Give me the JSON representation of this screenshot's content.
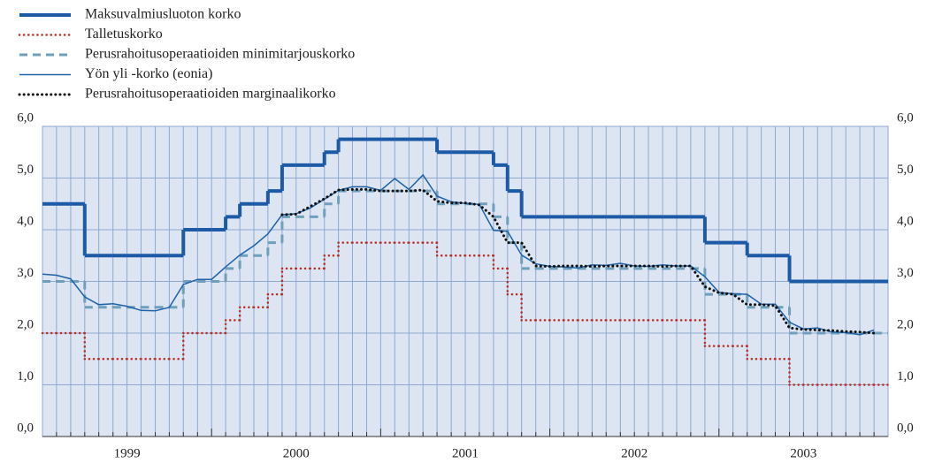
{
  "chart_data": {
    "type": "line",
    "xlim": [
      1999,
      2004
    ],
    "xticks": [
      {
        "value": 1999.5,
        "label": "1999"
      },
      {
        "value": 2000.5,
        "label": "2000"
      },
      {
        "value": 2001.5,
        "label": "2001"
      },
      {
        "value": 2002.5,
        "label": "2002"
      },
      {
        "value": 2003.5,
        "label": "2003"
      }
    ],
    "ylim": [
      0,
      6
    ],
    "yticks": [
      {
        "value": 0,
        "label": "0,0"
      },
      {
        "value": 1,
        "label": "1,0"
      },
      {
        "value": 2,
        "label": "2,0"
      },
      {
        "value": 3,
        "label": "3,0"
      },
      {
        "value": 4,
        "label": "4,0"
      },
      {
        "value": 5,
        "label": "5,0"
      },
      {
        "value": 6,
        "label": "6,0"
      }
    ],
    "grid": true,
    "legend": "top-left",
    "x": [
      1999.0,
      1999.083,
      1999.167,
      1999.25,
      1999.333,
      1999.417,
      1999.5,
      1999.583,
      1999.667,
      1999.75,
      1999.833,
      1999.917,
      2000.0,
      2000.083,
      2000.167,
      2000.25,
      2000.333,
      2000.417,
      2000.5,
      2000.583,
      2000.667,
      2000.75,
      2000.833,
      2000.917,
      2001.0,
      2001.083,
      2001.167,
      2001.25,
      2001.333,
      2001.417,
      2001.5,
      2001.583,
      2001.667,
      2001.75,
      2001.833,
      2001.917,
      2002.0,
      2002.083,
      2002.167,
      2002.25,
      2002.333,
      2002.417,
      2002.5,
      2002.583,
      2002.667,
      2002.75,
      2002.833,
      2002.917,
      2003.0,
      2003.083,
      2003.167,
      2003.25,
      2003.333,
      2003.417,
      2003.5,
      2003.583,
      2003.667,
      2003.75,
      2003.833,
      2003.917
    ],
    "series": [
      {
        "name": "Maksuvalmiusluoton korko",
        "color": "#1d5aa6",
        "dash": "solid",
        "width": 4,
        "step": true,
        "values": [
          4.5,
          4.5,
          4.5,
          3.5,
          3.5,
          3.5,
          3.5,
          3.5,
          3.5,
          3.5,
          4.0,
          4.0,
          4.0,
          4.25,
          4.5,
          4.5,
          4.75,
          5.25,
          5.25,
          5.25,
          5.5,
          5.75,
          5.75,
          5.75,
          5.75,
          5.75,
          5.75,
          5.75,
          5.5,
          5.5,
          5.5,
          5.5,
          5.25,
          4.75,
          4.25,
          4.25,
          4.25,
          4.25,
          4.25,
          4.25,
          4.25,
          4.25,
          4.25,
          4.25,
          4.25,
          4.25,
          4.25,
          3.75,
          3.75,
          3.75,
          3.5,
          3.5,
          3.5,
          3.0,
          3.0,
          3.0,
          3.0,
          3.0,
          3.0,
          3.0
        ]
      },
      {
        "name": "Talletuskorko",
        "color": "#b5302a",
        "dash": "dotted",
        "width": 2.5,
        "step": true,
        "values": [
          2.0,
          2.0,
          2.0,
          1.5,
          1.5,
          1.5,
          1.5,
          1.5,
          1.5,
          1.5,
          2.0,
          2.0,
          2.0,
          2.25,
          2.5,
          2.5,
          2.75,
          3.25,
          3.25,
          3.25,
          3.5,
          3.75,
          3.75,
          3.75,
          3.75,
          3.75,
          3.75,
          3.75,
          3.5,
          3.5,
          3.5,
          3.5,
          3.25,
          2.75,
          2.25,
          2.25,
          2.25,
          2.25,
          2.25,
          2.25,
          2.25,
          2.25,
          2.25,
          2.25,
          2.25,
          2.25,
          2.25,
          1.75,
          1.75,
          1.75,
          1.5,
          1.5,
          1.5,
          1.0,
          1.0,
          1.0,
          1.0,
          1.0,
          1.0,
          1.0
        ]
      },
      {
        "name": "Perusrahoitusoperaatioiden minimitarjouskorko",
        "color": "#6f9fba",
        "dash": "dashed",
        "width": 3,
        "step": true,
        "values": [
          3.0,
          3.0,
          3.0,
          2.5,
          2.5,
          2.5,
          2.5,
          2.5,
          2.5,
          2.5,
          3.0,
          3.0,
          3.0,
          3.25,
          3.5,
          3.5,
          3.75,
          4.25,
          4.25,
          4.25,
          4.5,
          4.75,
          4.75,
          4.75,
          4.75,
          4.75,
          4.75,
          4.75,
          4.5,
          4.5,
          4.5,
          4.5,
          4.25,
          3.75,
          3.25,
          3.25,
          3.25,
          3.25,
          3.25,
          3.25,
          3.25,
          3.25,
          3.25,
          3.25,
          3.25,
          3.25,
          3.25,
          2.75,
          2.75,
          2.75,
          2.5,
          2.5,
          2.5,
          2.0,
          2.0,
          2.0,
          2.0,
          2.0,
          2.0,
          2.0
        ]
      },
      {
        "name": "Yön yli -korko (eonia)",
        "color": "#1f62a8",
        "dash": "solid",
        "width": 1.5,
        "step": false,
        "values": [
          3.14,
          3.12,
          3.05,
          2.7,
          2.55,
          2.57,
          2.52,
          2.44,
          2.43,
          2.5,
          2.94,
          3.04,
          3.04,
          3.28,
          3.51,
          3.69,
          3.92,
          4.29,
          4.31,
          4.42,
          4.59,
          4.76,
          4.83,
          4.83,
          4.76,
          4.99,
          4.78,
          5.06,
          4.65,
          4.54,
          4.51,
          4.49,
          3.99,
          3.97,
          3.51,
          3.34,
          3.29,
          3.28,
          3.26,
          3.32,
          3.31,
          3.35,
          3.3,
          3.29,
          3.32,
          3.3,
          3.3,
          3.09,
          2.79,
          2.76,
          2.75,
          2.56,
          2.56,
          2.21,
          2.08,
          2.1,
          2.02,
          2.01,
          1.97,
          2.06
        ]
      },
      {
        "name": "Perusrahoitusoperaatioiden marginaalikorko",
        "color": "#111111",
        "dash": "dotted",
        "width": 3,
        "step": false,
        "values": [
          null,
          null,
          null,
          null,
          null,
          null,
          null,
          null,
          null,
          null,
          null,
          null,
          null,
          null,
          null,
          null,
          null,
          4.29,
          4.3,
          4.45,
          4.6,
          4.77,
          4.78,
          4.78,
          4.75,
          4.75,
          4.75,
          4.77,
          4.55,
          4.52,
          4.52,
          4.48,
          4.25,
          3.75,
          3.75,
          3.3,
          3.29,
          3.3,
          3.3,
          3.29,
          3.3,
          3.3,
          3.3,
          3.3,
          3.29,
          3.3,
          3.3,
          2.9,
          2.78,
          2.75,
          2.55,
          2.55,
          2.53,
          2.1,
          2.07,
          2.06,
          2.05,
          2.03,
          2.02,
          2.0
        ]
      }
    ]
  }
}
